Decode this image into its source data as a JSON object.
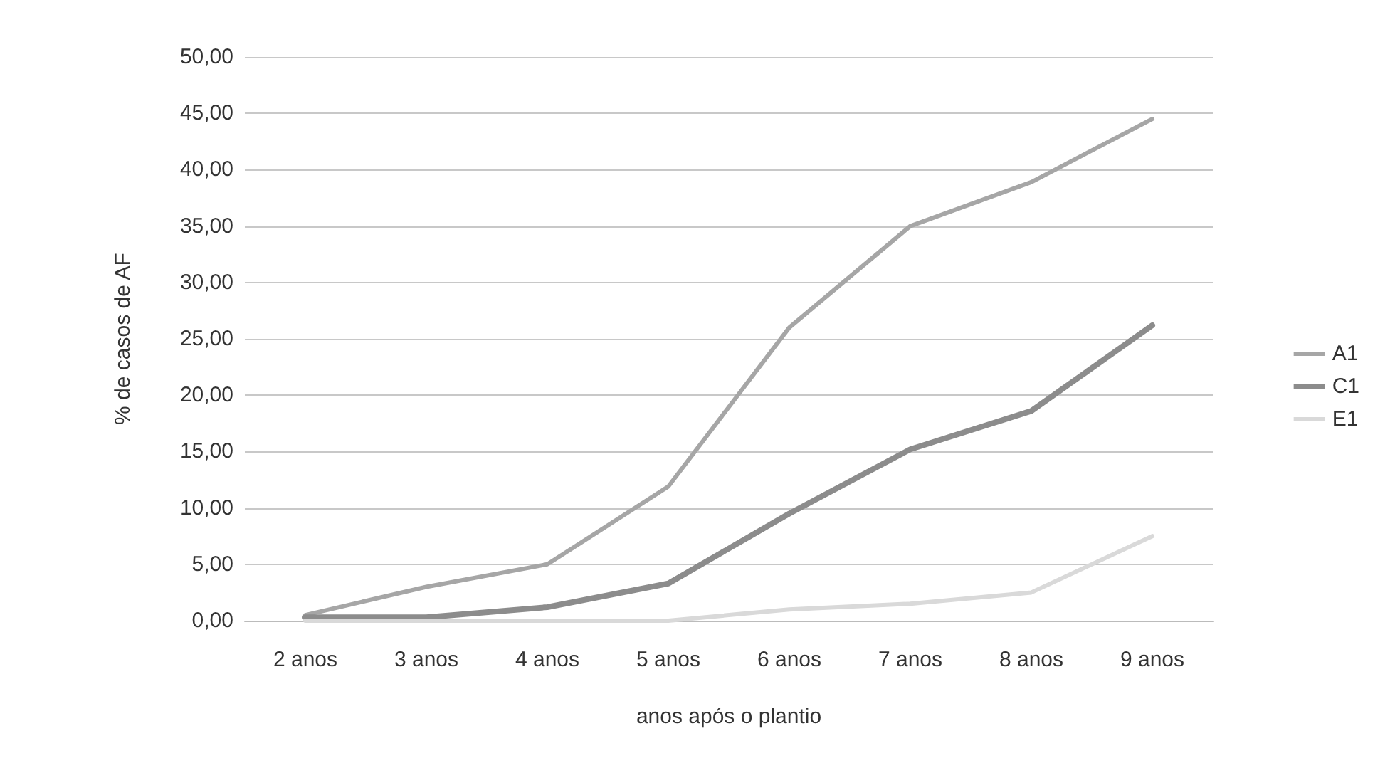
{
  "chart_data": {
    "type": "line",
    "xlabel": "anos após o plantio",
    "ylabel": "% de casos de AF",
    "categories": [
      "2 anos",
      "3 anos",
      "4 anos",
      "5 anos",
      "6 anos",
      "7 anos",
      "8 anos",
      "9 anos"
    ],
    "series": [
      {
        "name": "A1",
        "color": "#a6a6a6",
        "values": [
          0.5,
          3.0,
          5.0,
          11.9,
          26.0,
          35.0,
          38.9,
          44.5
        ]
      },
      {
        "name": "C1",
        "color": "#8c8c8c",
        "values": [
          0.3,
          0.3,
          1.2,
          3.3,
          9.5,
          15.2,
          18.6,
          26.2
        ]
      },
      {
        "name": "E1",
        "color": "#d9d9d9",
        "values": [
          0,
          0,
          0,
          0,
          1.0,
          1.5,
          2.5,
          7.5
        ]
      }
    ],
    "ylim": [
      0,
      50
    ],
    "yticks": [
      {
        "value": 0,
        "label": "0,00"
      },
      {
        "value": 5,
        "label": "5,00"
      },
      {
        "value": 10,
        "label": "10,00"
      },
      {
        "value": 15,
        "label": "15,00"
      },
      {
        "value": 20,
        "label": "20,00"
      },
      {
        "value": 25,
        "label": "25,00"
      },
      {
        "value": 30,
        "label": "30,00"
      },
      {
        "value": 35,
        "label": "35,00"
      },
      {
        "value": 40,
        "label": "40,00"
      },
      {
        "value": 45,
        "label": "45,00"
      },
      {
        "value": 50,
        "label": "50,00"
      }
    ],
    "grid": "y",
    "legend": "right",
    "marker": "none",
    "line_style": "solid"
  }
}
